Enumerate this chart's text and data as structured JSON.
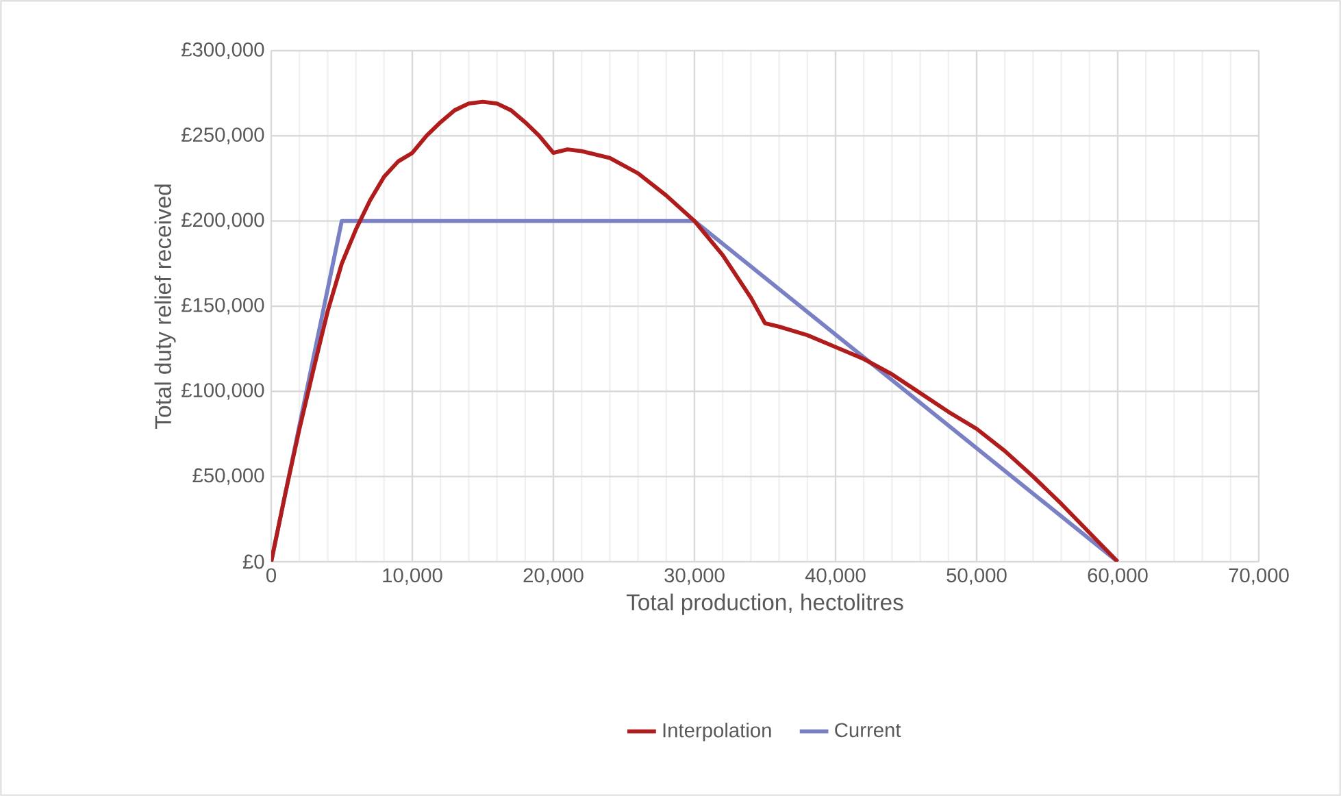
{
  "chart_data": {
    "type": "line",
    "xlabel": "Total production, hectolitres",
    "ylabel": "Total duty relief received",
    "x": [
      0,
      1000,
      2000,
      3000,
      4000,
      5000,
      6000,
      7000,
      8000,
      9000,
      10000,
      11000,
      12000,
      13000,
      14000,
      15000,
      16000,
      17000,
      18000,
      19000,
      20000,
      21000,
      22000,
      24000,
      26000,
      28000,
      30000,
      32000,
      34000,
      35000,
      36000,
      38000,
      40000,
      42000,
      44000,
      46000,
      48000,
      50000,
      52000,
      54000,
      56000,
      58000,
      60000
    ],
    "series": [
      {
        "name": "Interpolation",
        "color": "#b01c1c",
        "values": [
          0,
          40000,
          78000,
          113000,
          147000,
          175000,
          195000,
          212000,
          226000,
          235000,
          240000,
          250000,
          258000,
          265000,
          269000,
          270000,
          269000,
          265000,
          258000,
          250000,
          240000,
          242000,
          241000,
          237000,
          228000,
          215000,
          200000,
          180000,
          155000,
          140000,
          138000,
          133000,
          126000,
          119000,
          110000,
          99000,
          88000,
          78000,
          65000,
          50000,
          34000,
          17000,
          0
        ]
      },
      {
        "name": "Current",
        "color": "#7a80c4",
        "x": [
          0,
          5000,
          30000,
          60000
        ],
        "values": [
          0,
          200000,
          200000,
          0
        ]
      }
    ],
    "xlim": [
      0,
      70000
    ],
    "ylim": [
      0,
      300000
    ],
    "xticks": [
      0,
      {
        "value": 10000,
        "label": "10,000"
      },
      {
        "value": 20000,
        "label": "20,000"
      },
      {
        "value": 30000,
        "label": "30,000"
      },
      {
        "value": 40000,
        "label": "40,000"
      },
      {
        "value": 50000,
        "label": "50,000"
      },
      {
        "value": 60000,
        "label": "60,000"
      },
      {
        "value": 70000,
        "label": "70,000"
      }
    ],
    "yticks": [
      {
        "value": 0,
        "label": "£0"
      },
      {
        "value": 50000,
        "label": "£50,000"
      },
      {
        "value": 100000,
        "label": "£100,000"
      },
      {
        "value": 150000,
        "label": "£150,000"
      },
      {
        "value": 200000,
        "label": "£200,000"
      },
      {
        "value": 250000,
        "label": "£250,000"
      },
      {
        "value": 300000,
        "label": "£300,000"
      }
    ],
    "grid": true,
    "legend": "bottom"
  }
}
